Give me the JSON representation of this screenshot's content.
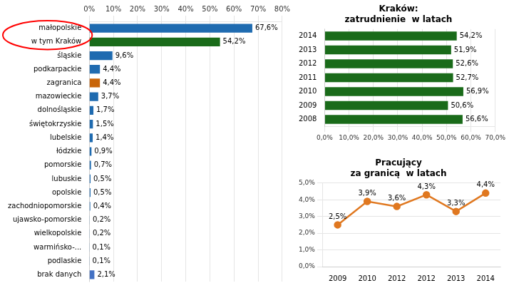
{
  "chart_data": [
    {
      "type": "bar",
      "orientation": "horizontal",
      "categories": [
        "małopolskie",
        "w tym Kraków",
        "śląskie",
        "podkarpackie",
        "zagranica",
        "mazowieckie",
        "dolnośląskie",
        "świętokrzyskie",
        "lubelskie",
        "łódzkie",
        "pomorskie",
        "lubuskie",
        "opolskie",
        "zachodniopomorskie",
        "ujawsko-pomorskie",
        "wielkopolskie",
        "warmińsko-...",
        "podlaskie",
        "brak danych"
      ],
      "values": [
        67.6,
        54.2,
        9.6,
        4.4,
        4.4,
        3.7,
        1.7,
        1.5,
        1.4,
        0.9,
        0.7,
        0.5,
        0.5,
        0.4,
        0.2,
        0.2,
        0.1,
        0.1,
        2.1
      ],
      "value_labels": [
        "67,6%",
        "54,2%",
        "9,6%",
        "4,4%",
        "4,4%",
        "3,7%",
        "1,7%",
        "1,5%",
        "1,4%",
        "0,9%",
        "0,7%",
        "0,5%",
        "0,5%",
        "0,4%",
        "0,2%",
        "0,2%",
        "0,1%",
        "0,1%",
        "2,1%"
      ],
      "colors": [
        "#1F6BB0",
        "#1A6B1A",
        "#1F6BB0",
        "#1F6BB0",
        "#C8650A",
        "#1F6BB0",
        "#1F6BB0",
        "#1F6BB0",
        "#1F6BB0",
        "#1F6BB0",
        "#1F6BB0",
        "#1F6BB0",
        "#1F6BB0",
        "#1F6BB0",
        "#1F6BB0",
        "#1F6BB0",
        "#1F6BB0",
        "#1F6BB0",
        "#4472C4"
      ],
      "xlim": [
        0,
        80
      ],
      "xticks": [
        {
          "value": 0,
          "label": "0%"
        },
        {
          "value": 10,
          "label": "10%"
        },
        {
          "value": 20,
          "label": "20%"
        },
        {
          "value": 30,
          "label": "30%"
        },
        {
          "value": 40,
          "label": "40%"
        },
        {
          "value": 50,
          "label": "50%"
        },
        {
          "value": 60,
          "label": "60%"
        },
        {
          "value": 70,
          "label": "70%"
        },
        {
          "value": 80,
          "label": "80%"
        }
      ],
      "grid": true,
      "data_labels": true
    },
    {
      "type": "bar",
      "orientation": "horizontal",
      "title": "Kraków:\nzatrudnienie  w latach",
      "categories": [
        "2014",
        "2013",
        "2012",
        "2011",
        "2010",
        "2009",
        "2008"
      ],
      "values": [
        54.2,
        51.9,
        52.6,
        52.7,
        56.9,
        50.6,
        56.6
      ],
      "value_labels": [
        "54,2%",
        "51,9%",
        "52,6%",
        "52,7%",
        "56,9%",
        "50,6%",
        "56,6%"
      ],
      "color": "#1A6B1A",
      "xlim": [
        0,
        70
      ],
      "xticks": [
        {
          "value": 0,
          "label": "0,0%"
        },
        {
          "value": 10,
          "label": "10,0%"
        },
        {
          "value": 20,
          "label": "20,0%"
        },
        {
          "value": 30,
          "label": "30,0%"
        },
        {
          "value": 40,
          "label": "40,0%"
        },
        {
          "value": 50,
          "label": "50,0%"
        },
        {
          "value": 60,
          "label": "60,0%"
        },
        {
          "value": 70,
          "label": "70,0%"
        }
      ],
      "grid": true,
      "data_labels": true
    },
    {
      "type": "line",
      "title": "Pracujący\nza granicą  w latach",
      "categories": [
        "2009",
        "2010",
        "2012",
        "2012",
        "2013",
        "2014"
      ],
      "values": [
        2.5,
        3.9,
        3.6,
        4.3,
        3.3,
        4.4
      ],
      "value_labels": [
        "2,5%",
        "3,9%",
        "3,6%",
        "4,3%",
        "3,3%",
        "4,4%"
      ],
      "color": "#E07820",
      "marker": "circle",
      "ylim": [
        0,
        5
      ],
      "yticks": [
        {
          "value": 0,
          "label": "0,0%"
        },
        {
          "value": 1,
          "label": "1,0%"
        },
        {
          "value": 2,
          "label": "2,0%"
        },
        {
          "value": 3,
          "label": "3,0%"
        },
        {
          "value": 4,
          "label": "4,0%"
        },
        {
          "value": 5,
          "label": "5,0%"
        }
      ],
      "grid": true,
      "data_labels": true
    }
  ]
}
